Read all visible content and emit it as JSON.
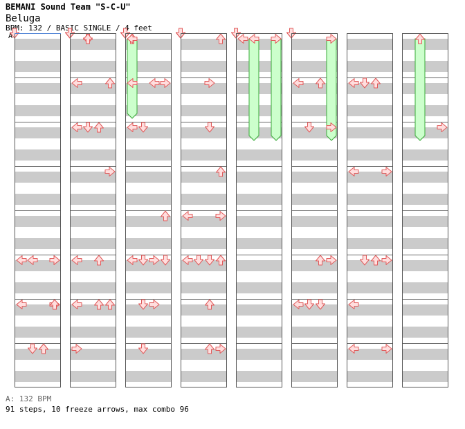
{
  "header": {
    "artist": "BEMANI Sound Team \"S-C-U\"",
    "title": "Beluga",
    "meta": "BPM: 132 / BASIC SINGLE / 4 feet",
    "section_label": "A"
  },
  "footer": {
    "bpm_line": "A: 132 BPM",
    "stats_line": "91 steps, 10 freeze arrows, max combo 96"
  },
  "chart_data": {
    "type": "step-chart",
    "bpm": 132,
    "difficulty": "BASIC SINGLE",
    "feet": 4,
    "lanes": [
      "left",
      "down",
      "up",
      "right"
    ],
    "columns": 8,
    "measures_per_column": 8,
    "steps_per_measure": 8,
    "total_steps": 91,
    "freeze_arrows": 10,
    "max_combo": 96,
    "colors": {
      "arrow_fill": "#ffdede",
      "arrow_stroke": "#e05a5a",
      "freeze_fill": "#ccffcc",
      "freeze_stroke": "#3aa83a",
      "band": "#cbcbcb",
      "marker": "#4a7fd4"
    },
    "arrows": [
      [
        1,
        0,
        1,
        "down"
      ],
      [
        1,
        0,
        1,
        "up"
      ],
      [
        1,
        1,
        0,
        "left"
      ],
      [
        1,
        1,
        3,
        "up"
      ],
      [
        1,
        2,
        0,
        "left"
      ],
      [
        1,
        2,
        1,
        "down"
      ],
      [
        1,
        2,
        2,
        "up"
      ],
      [
        1,
        3,
        3,
        "right"
      ],
      [
        1,
        3,
        5,
        "up"
      ],
      [
        1,
        3,
        7,
        "right"
      ],
      [
        1,
        4,
        5,
        "down"
      ],
      [
        1,
        4,
        6,
        "up"
      ],
      [
        1,
        5,
        0,
        "left"
      ],
      [
        1,
        5,
        2,
        "up"
      ],
      [
        1,
        6,
        0,
        "left"
      ],
      [
        1,
        6,
        2,
        "up"
      ],
      [
        1,
        6,
        3,
        "up"
      ],
      [
        1,
        7,
        0,
        "right"
      ],
      [
        2,
        0,
        0,
        "left"
      ],
      [
        2,
        1,
        0,
        "left"
      ],
      [
        2,
        1,
        2,
        "left"
      ],
      [
        2,
        1,
        3,
        "right"
      ],
      [
        2,
        1,
        4,
        "right"
      ],
      [
        2,
        2,
        0,
        "left"
      ],
      [
        2,
        2,
        1,
        "down"
      ],
      [
        2,
        3,
        4,
        "right"
      ],
      [
        2,
        3,
        6,
        "left"
      ],
      [
        2,
        3,
        7,
        "right"
      ],
      [
        2,
        4,
        3,
        "up"
      ],
      [
        2,
        5,
        0,
        "left"
      ],
      [
        2,
        5,
        1,
        "down"
      ],
      [
        2,
        5,
        2,
        "right"
      ],
      [
        2,
        5,
        3,
        "down"
      ],
      [
        2,
        6,
        1,
        "down"
      ],
      [
        2,
        6,
        2,
        "right"
      ],
      [
        2,
        6,
        4,
        "up"
      ],
      [
        2,
        7,
        1,
        "down"
      ],
      [
        3,
        0,
        3,
        "up"
      ],
      [
        3,
        1,
        2,
        "right"
      ],
      [
        3,
        1,
        5,
        "down"
      ],
      [
        3,
        1,
        6,
        "up"
      ],
      [
        3,
        2,
        2,
        "down"
      ],
      [
        3,
        2,
        4,
        "up"
      ],
      [
        3,
        2,
        7,
        "left"
      ],
      [
        3,
        3,
        3,
        "up"
      ],
      [
        3,
        3,
        6,
        "left"
      ],
      [
        3,
        4,
        0,
        "left"
      ],
      [
        3,
        4,
        3,
        "right"
      ],
      [
        3,
        5,
        0,
        "left"
      ],
      [
        3,
        5,
        1,
        "down"
      ],
      [
        3,
        5,
        2,
        "down"
      ],
      [
        3,
        5,
        3,
        "up"
      ],
      [
        3,
        5,
        4,
        "down"
      ],
      [
        3,
        6,
        2,
        "up"
      ],
      [
        3,
        6,
        4,
        "right"
      ],
      [
        3,
        7,
        2,
        "up"
      ],
      [
        3,
        7,
        3,
        "right"
      ],
      [
        4,
        0,
        0,
        "left"
      ],
      [
        4,
        0,
        3,
        "right"
      ],
      [
        5,
        1,
        0,
        "left"
      ],
      [
        5,
        1,
        2,
        "up"
      ],
      [
        5,
        2,
        1,
        "down"
      ],
      [
        5,
        2,
        3,
        "right"
      ],
      [
        5,
        2,
        4,
        "down"
      ],
      [
        5,
        5,
        3,
        "right"
      ],
      [
        5,
        5,
        2,
        "up"
      ],
      [
        5,
        6,
        1,
        "down"
      ],
      [
        5,
        6,
        0,
        "left"
      ],
      [
        5,
        6,
        2,
        "down"
      ],
      [
        6,
        1,
        0,
        "left"
      ],
      [
        6,
        1,
        1,
        "down"
      ],
      [
        6,
        1,
        2,
        "up"
      ],
      [
        6,
        3,
        0,
        "left"
      ],
      [
        6,
        3,
        3,
        "right"
      ],
      [
        6,
        5,
        3,
        "right"
      ],
      [
        6,
        5,
        1,
        "down"
      ],
      [
        6,
        5,
        2,
        "up"
      ],
      [
        6,
        6,
        0,
        "left"
      ],
      [
        6,
        7,
        0,
        "left"
      ],
      [
        6,
        7,
        3,
        "right"
      ],
      [
        7,
        2,
        3,
        "right"
      ],
      [
        0,
        5,
        0,
        "left"
      ],
      [
        0,
        5,
        3,
        "right"
      ],
      [
        0,
        5,
        1,
        "left"
      ],
      [
        0,
        5,
        3,
        "right"
      ],
      [
        0,
        6,
        0,
        "left"
      ],
      [
        0,
        6,
        3,
        "right"
      ],
      [
        0,
        6,
        0,
        "left"
      ],
      [
        0,
        6,
        3,
        "up"
      ],
      [
        0,
        7,
        2,
        "up"
      ],
      [
        0,
        7,
        1,
        "down"
      ],
      [
        0,
        7,
        2,
        "up"
      ]
    ],
    "freezes": [
      [
        0,
        7,
        4,
        "right",
        0.875
      ],
      [
        1,
        7,
        4,
        "up",
        0.875
      ],
      [
        2,
        0,
        0,
        "up",
        1.75
      ],
      [
        4,
        1,
        0,
        "left",
        2.25
      ],
      [
        4,
        3,
        0,
        "right",
        2.25
      ],
      [
        4,
        5,
        0,
        "down",
        2.25
      ],
      [
        4,
        7,
        0,
        "up",
        2.0
      ],
      [
        5,
        3,
        0,
        "right",
        2.25
      ],
      [
        5,
        7,
        0,
        "left",
        2.0
      ],
      [
        7,
        1,
        0,
        "up",
        2.25
      ]
    ]
  }
}
